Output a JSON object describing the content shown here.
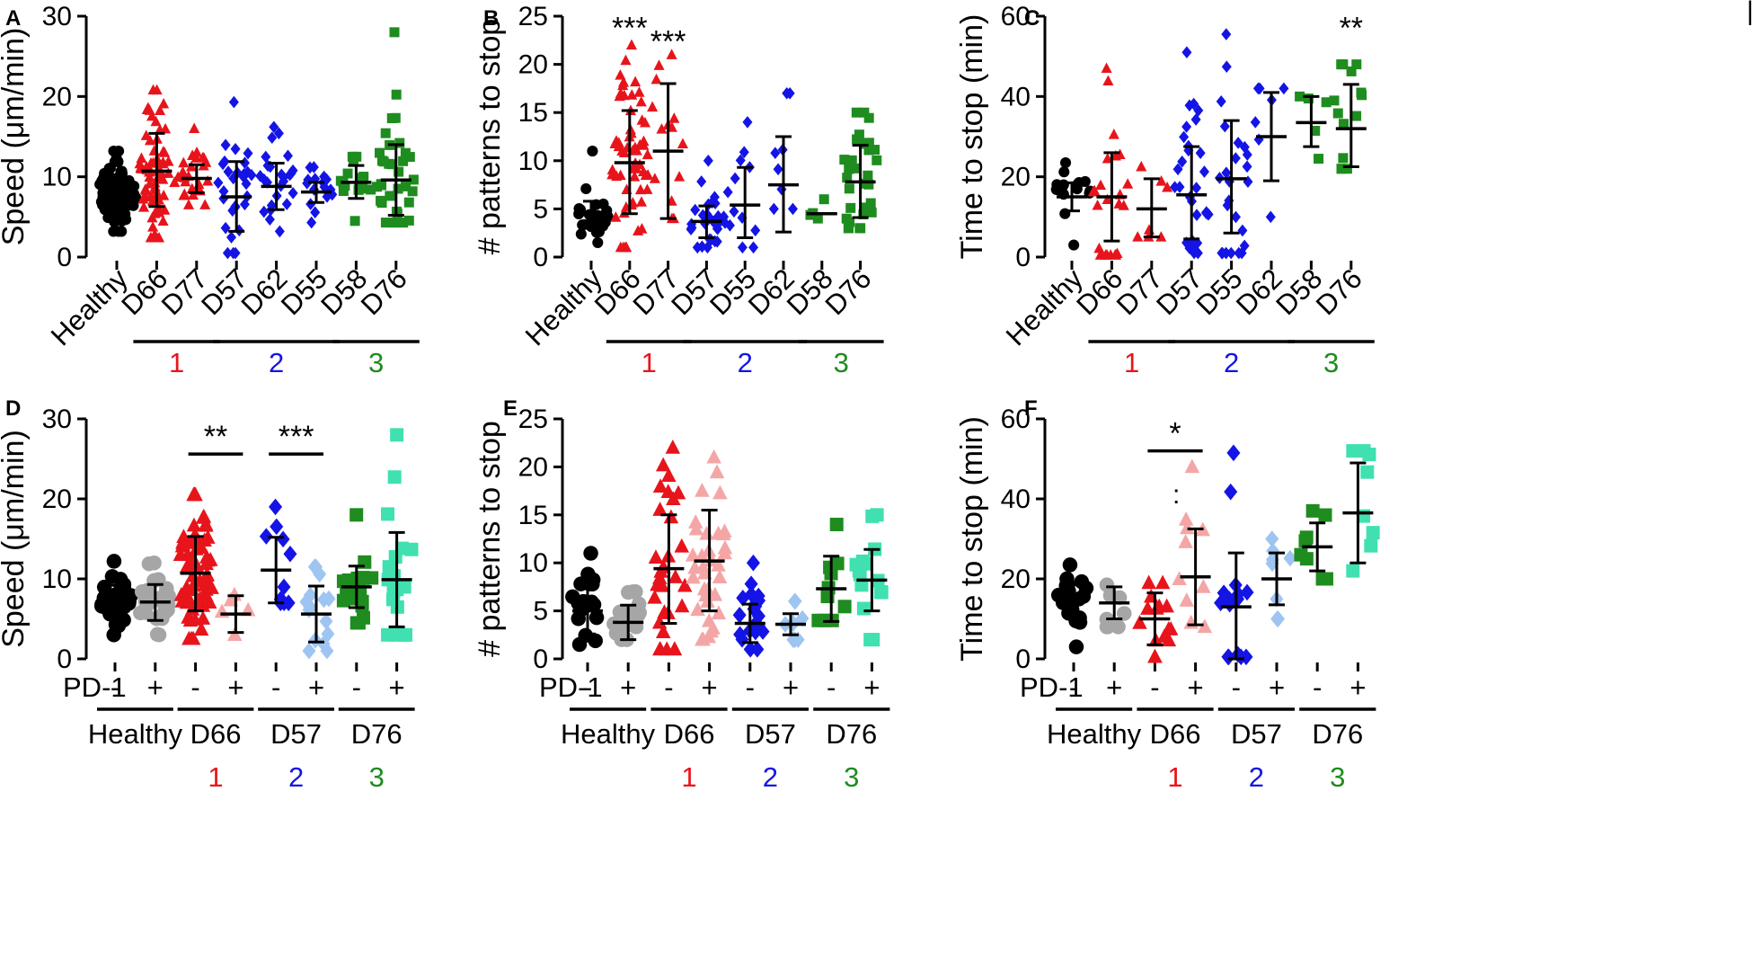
{
  "colors": {
    "black": "#000000",
    "gray": "#a6a6a6",
    "red": "#e8141b",
    "pink": "#f4a6a6",
    "blue": "#1414e6",
    "lightblue": "#9ec5f2",
    "green": "#1e8c1e",
    "mint": "#40e0b0"
  },
  "figure_marks": {
    "corner_mark_right": "|",
    "corner_mark_F": ":"
  },
  "chart_data": [
    {
      "id": "A",
      "type": "scatter",
      "panel_label": "A",
      "ylabel": "Speed (μm/min)",
      "ylim": [
        0,
        30
      ],
      "yticks": [
        0,
        10,
        20,
        30
      ],
      "categories": [
        "Healthy",
        "D66",
        "D77",
        "D57",
        "D62",
        "D55",
        "D58",
        "D76"
      ],
      "series": [
        {
          "name": "Healthy",
          "color": "black",
          "marker": "circle",
          "mean": 7.7,
          "sd_low": 5.6,
          "sd_high": 9.8,
          "n": 120,
          "min": 3.2,
          "max": 13.2
        },
        {
          "name": "D66",
          "color": "red",
          "marker": "triangle",
          "mean": 10.7,
          "sd_low": 6.3,
          "sd_high": 15.4,
          "n": 70,
          "min": 2.4,
          "max": 20.8
        },
        {
          "name": "D77",
          "color": "red",
          "marker": "triangle",
          "mean": 9.8,
          "sd_low": 8.0,
          "sd_high": 11.5,
          "n": 25,
          "min": 6.5,
          "max": 16.0
        },
        {
          "name": "D57",
          "color": "blue",
          "marker": "diamond",
          "mean": 7.5,
          "sd_low": 3.2,
          "sd_high": 11.9,
          "n": 30,
          "min": 0.5,
          "max": 19.3
        },
        {
          "name": "D62",
          "color": "blue",
          "marker": "diamond",
          "mean": 8.8,
          "sd_low": 5.9,
          "sd_high": 11.7,
          "n": 25,
          "min": 3.2,
          "max": 16.2
        },
        {
          "name": "D55",
          "color": "blue",
          "marker": "diamond",
          "mean": 8.1,
          "sd_low": 6.8,
          "sd_high": 9.3,
          "n": 18,
          "min": 4.3,
          "max": 11.2
        },
        {
          "name": "D58",
          "color": "green",
          "marker": "square",
          "mean": 9.3,
          "sd_low": 7.3,
          "sd_high": 11.4,
          "n": 15,
          "min": 4.5,
          "max": 12.5
        },
        {
          "name": "D76",
          "color": "green",
          "marker": "square",
          "mean": 9.6,
          "sd_low": 5.2,
          "sd_high": 14.0,
          "n": 35,
          "min": 4.3,
          "max": 28.0
        }
      ],
      "groups": [
        {
          "label": "1",
          "color": "red",
          "from": 1,
          "to": 2
        },
        {
          "label": "2",
          "color": "blue",
          "from": 3,
          "to": 5
        },
        {
          "label": "3",
          "color": "green",
          "from": 6,
          "to": 7
        }
      ],
      "significance": []
    },
    {
      "id": "B",
      "type": "scatter",
      "panel_label": "B",
      "ylabel": "# patterns to stop",
      "ylim": [
        0,
        25
      ],
      "yticks": [
        0,
        5,
        10,
        15,
        20,
        25
      ],
      "categories": [
        "Healthy",
        "D66",
        "D77",
        "D57",
        "D55",
        "D62",
        "D58",
        "D76"
      ],
      "series": [
        {
          "name": "Healthy",
          "color": "black",
          "marker": "circle",
          "mean": 4.5,
          "sd_low": 3.2,
          "sd_high": 5.8,
          "n": 25,
          "min": 1.5,
          "max": 11.0
        },
        {
          "name": "D66",
          "color": "red",
          "marker": "triangle",
          "mean": 9.8,
          "sd_low": 4.5,
          "sd_high": 15.2,
          "n": 60,
          "min": 1.0,
          "max": 22.0
        },
        {
          "name": "D77",
          "color": "red",
          "marker": "triangle",
          "mean": 11.0,
          "sd_low": 4.0,
          "sd_high": 18.0,
          "n": 14,
          "min": 4.0,
          "max": 21.0
        },
        {
          "name": "D57",
          "color": "blue",
          "marker": "diamond",
          "mean": 3.7,
          "sd_low": 2.0,
          "sd_high": 5.3,
          "n": 30,
          "min": 1.0,
          "max": 10.0
        },
        {
          "name": "D55",
          "color": "blue",
          "marker": "diamond",
          "mean": 5.4,
          "sd_low": 2.0,
          "sd_high": 9.3,
          "n": 12,
          "min": 1.0,
          "max": 14.0
        },
        {
          "name": "D62",
          "color": "blue",
          "marker": "diamond",
          "mean": 7.5,
          "sd_low": 2.6,
          "sd_high": 12.5,
          "n": 8,
          "min": 5.0,
          "max": 17.0
        },
        {
          "name": "D58",
          "color": "green",
          "marker": "square",
          "mean": 4.5,
          "sd_low": 4.5,
          "sd_high": 4.5,
          "n": 4,
          "min": 4.0,
          "max": 6.0
        },
        {
          "name": "D76",
          "color": "green",
          "marker": "square",
          "mean": 7.8,
          "sd_low": 4.1,
          "sd_high": 11.6,
          "n": 30,
          "min": 3.0,
          "max": 15.0
        }
      ],
      "groups": [
        {
          "label": "1",
          "color": "red",
          "from": 1,
          "to": 2
        },
        {
          "label": "2",
          "color": "blue",
          "from": 3,
          "to": 5
        },
        {
          "label": "3",
          "color": "green",
          "from": 6,
          "to": 7
        }
      ],
      "significance": [
        {
          "label": "***",
          "index": 1,
          "value": 22.7
        },
        {
          "label": "***",
          "index": 2,
          "value": 21.3
        }
      ]
    },
    {
      "id": "C",
      "type": "scatter",
      "panel_label": "C",
      "ylabel": "Time to stop (min)",
      "ylim": [
        0,
        60
      ],
      "yticks": [
        0,
        20,
        40,
        60
      ],
      "categories": [
        "Healthy",
        "D66",
        "D77",
        "D57",
        "D55",
        "D62",
        "D58",
        "D76"
      ],
      "series": [
        {
          "name": "Healthy",
          "color": "black",
          "marker": "circle",
          "mean": 15.0,
          "sd_low": 11.5,
          "sd_high": 18.5,
          "n": 16,
          "min": 3.0,
          "max": 23.5
        },
        {
          "name": "D66",
          "color": "red",
          "marker": "triangle",
          "mean": 15.0,
          "sd_low": 4.0,
          "sd_high": 26.0,
          "n": 25,
          "min": 0.5,
          "max": 47.0
        },
        {
          "name": "D77",
          "color": "red",
          "marker": "triangle",
          "mean": 12.0,
          "sd_low": 5.0,
          "sd_high": 19.5,
          "n": 7,
          "min": 5.0,
          "max": 22.5
        },
        {
          "name": "D57",
          "color": "blue",
          "marker": "diamond",
          "mean": 15.5,
          "sd_low": 4.5,
          "sd_high": 27.5,
          "n": 30,
          "min": 1.0,
          "max": 51.0
        },
        {
          "name": "D55",
          "color": "blue",
          "marker": "diamond",
          "mean": 19.5,
          "sd_low": 6.0,
          "sd_high": 34.0,
          "n": 25,
          "min": 1.0,
          "max": 55.5
        },
        {
          "name": "D62",
          "color": "blue",
          "marker": "diamond",
          "mean": 30.0,
          "sd_low": 19.0,
          "sd_high": 41.0,
          "n": 7,
          "min": 10.0,
          "max": 42.0
        },
        {
          "name": "D58",
          "color": "green",
          "marker": "square",
          "mean": 33.5,
          "sd_low": 27.5,
          "sd_high": 40.0,
          "n": 5,
          "min": 24.5,
          "max": 40.0
        },
        {
          "name": "D76",
          "color": "green",
          "marker": "square",
          "mean": 32.0,
          "sd_low": 22.5,
          "sd_high": 43.0,
          "n": 15,
          "min": 22.0,
          "max": 48.0
        }
      ],
      "groups": [
        {
          "label": "1",
          "color": "red",
          "from": 1,
          "to": 2
        },
        {
          "label": "2",
          "color": "blue",
          "from": 3,
          "to": 5
        },
        {
          "label": "3",
          "color": "green",
          "from": 6,
          "to": 7
        }
      ],
      "significance": [
        {
          "label": "**",
          "index": 7,
          "value": 54.5
        }
      ]
    },
    {
      "id": "D",
      "type": "scatter",
      "panel_label": "D",
      "ylabel": "Speed (μm/min)",
      "ylim": [
        0,
        30
      ],
      "yticks": [
        0,
        10,
        20,
        30
      ],
      "pd1_label": "PD-1",
      "pd1_signs": [
        "-",
        "+"
      ],
      "categories": [
        "Healthy -",
        "Healthy +",
        "D66 -",
        "D66 +",
        "D57 -",
        "D57 +",
        "D76 -",
        "D76 +"
      ],
      "series": [
        {
          "name": "Healthy -",
          "color": "black",
          "marker": "circle",
          "mean": 7.5,
          "sd_low": 5.8,
          "sd_high": 9.2,
          "n": 30,
          "min": 3.0,
          "max": 12.2
        },
        {
          "name": "Healthy +",
          "color": "gray",
          "marker": "circle",
          "mean": 7.1,
          "sd_low": 4.8,
          "sd_high": 9.3,
          "n": 30,
          "min": 3.0,
          "max": 12.0
        },
        {
          "name": "D66 -",
          "color": "red",
          "marker": "triangle",
          "mean": 10.7,
          "sd_low": 6.0,
          "sd_high": 15.3,
          "n": 70,
          "min": 2.5,
          "max": 20.5
        },
        {
          "name": "D66 +",
          "color": "pink",
          "marker": "triangle",
          "mean": 5.6,
          "sd_low": 3.3,
          "sd_high": 7.9,
          "n": 5,
          "min": 3.0,
          "max": 8.0
        },
        {
          "name": "D57 -",
          "color": "blue",
          "marker": "diamond",
          "mean": 11.1,
          "sd_low": 7.0,
          "sd_high": 15.2,
          "n": 10,
          "min": 7.0,
          "max": 19.0
        },
        {
          "name": "D57 +",
          "color": "lightblue",
          "marker": "diamond",
          "mean": 5.6,
          "sd_low": 2.1,
          "sd_high": 9.1,
          "n": 15,
          "min": 1.0,
          "max": 11.5
        },
        {
          "name": "D76 -",
          "color": "green",
          "marker": "square",
          "mean": 9.0,
          "sd_low": 6.4,
          "sd_high": 11.6,
          "n": 20,
          "min": 4.5,
          "max": 18.0
        },
        {
          "name": "D76 +",
          "color": "mint",
          "marker": "square",
          "mean": 9.9,
          "sd_low": 4.0,
          "sd_high": 15.8,
          "n": 18,
          "min": 3.0,
          "max": 28.0
        }
      ],
      "groups": [
        {
          "label": "Healthy",
          "num": "",
          "color": "black",
          "from": 0,
          "to": 1
        },
        {
          "label": "D66",
          "num": "1",
          "color": "red",
          "from": 2,
          "to": 3
        },
        {
          "label": "D57",
          "num": "2",
          "color": "blue",
          "from": 4,
          "to": 5
        },
        {
          "label": "D76",
          "num": "3",
          "color": "green",
          "from": 6,
          "to": 7
        }
      ],
      "significance": [
        {
          "label": "**",
          "from": 2,
          "to": 3,
          "value": 25.6
        },
        {
          "label": "***",
          "from": 4,
          "to": 5,
          "value": 25.6
        }
      ]
    },
    {
      "id": "E",
      "type": "scatter",
      "panel_label": "E",
      "ylabel": "# patterns to stop",
      "ylim": [
        0,
        25
      ],
      "yticks": [
        0,
        5,
        10,
        15,
        20,
        25
      ],
      "pd1_label": "PD-1",
      "pd1_signs": [
        "-",
        "+"
      ],
      "categories": [
        "Healthy -",
        "Healthy +",
        "D66 -",
        "D66 +",
        "D57 -",
        "D57 +",
        "D76 -",
        "D76 +"
      ],
      "series": [
        {
          "name": "Healthy -",
          "color": "black",
          "marker": "circle",
          "mean": 5.0,
          "sd_low": 2.6,
          "sd_high": 7.4,
          "n": 18,
          "min": 1.5,
          "max": 11.0
        },
        {
          "name": "Healthy +",
          "color": "gray",
          "marker": "circle",
          "mean": 3.8,
          "sd_low": 2.0,
          "sd_high": 5.6,
          "n": 20,
          "min": 2.0,
          "max": 7.0
        },
        {
          "name": "D66 -",
          "color": "red",
          "marker": "triangle",
          "mean": 9.4,
          "sd_low": 3.7,
          "sd_high": 15.0,
          "n": 30,
          "min": 1.0,
          "max": 22.0
        },
        {
          "name": "D66 +",
          "color": "pink",
          "marker": "triangle",
          "mean": 10.2,
          "sd_low": 5.0,
          "sd_high": 15.5,
          "n": 35,
          "min": 2.0,
          "max": 21.0
        },
        {
          "name": "D57 -",
          "color": "blue",
          "marker": "diamond",
          "mean": 3.7,
          "sd_low": 1.7,
          "sd_high": 5.7,
          "n": 20,
          "min": 1.0,
          "max": 10.0
        },
        {
          "name": "D57 +",
          "color": "lightblue",
          "marker": "diamond",
          "mean": 3.6,
          "sd_low": 2.5,
          "sd_high": 4.7,
          "n": 8,
          "min": 2.0,
          "max": 6.0
        },
        {
          "name": "D76 -",
          "color": "green",
          "marker": "square",
          "mean": 7.3,
          "sd_low": 3.9,
          "sd_high": 10.7,
          "n": 10,
          "min": 4.0,
          "max": 14.0
        },
        {
          "name": "D76 +",
          "color": "mint",
          "marker": "square",
          "mean": 8.2,
          "sd_low": 5.0,
          "sd_high": 11.4,
          "n": 15,
          "min": 2.0,
          "max": 15.0
        }
      ],
      "groups": [
        {
          "label": "Healthy",
          "num": "",
          "color": "black",
          "from": 0,
          "to": 1
        },
        {
          "label": "D66",
          "num": "1",
          "color": "red",
          "from": 2,
          "to": 3
        },
        {
          "label": "D57",
          "num": "2",
          "color": "blue",
          "from": 4,
          "to": 5
        },
        {
          "label": "D76",
          "num": "3",
          "color": "green",
          "from": 6,
          "to": 7
        }
      ],
      "significance": []
    },
    {
      "id": "F",
      "type": "scatter",
      "panel_label": "F",
      "ylabel": "Time to stop (min)",
      "ylim": [
        0,
        60
      ],
      "yticks": [
        0,
        20,
        40,
        60
      ],
      "pd1_label": "PD-1",
      "pd1_signs": [
        "-",
        "+"
      ],
      "categories": [
        "Healthy -",
        "Healthy +",
        "D66 -",
        "D66 +",
        "D57 -",
        "D57 +",
        "D76 -",
        "D76 +"
      ],
      "series": [
        {
          "name": "Healthy -",
          "color": "black",
          "marker": "circle",
          "mean": 15.0,
          "sd_low": 11.5,
          "sd_high": 18.5,
          "n": 20,
          "min": 3.0,
          "max": 23.5
        },
        {
          "name": "Healthy +",
          "color": "gray",
          "marker": "circle",
          "mean": 14.0,
          "sd_low": 10.0,
          "sd_high": 18.0,
          "n": 8,
          "min": 8.0,
          "max": 18.5
        },
        {
          "name": "D66 -",
          "color": "red",
          "marker": "triangle",
          "mean": 10.0,
          "sd_low": 3.5,
          "sd_high": 16.5,
          "n": 15,
          "min": 0.5,
          "max": 19.0
        },
        {
          "name": "D66 +",
          "color": "pink",
          "marker": "triangle",
          "mean": 20.5,
          "sd_low": 8.5,
          "sd_high": 32.5,
          "n": 10,
          "min": 8.0,
          "max": 48.0
        },
        {
          "name": "D57 -",
          "color": "blue",
          "marker": "diamond",
          "mean": 13.0,
          "sd_low": 0.0,
          "sd_high": 26.5,
          "n": 15,
          "min": 0.5,
          "max": 51.5
        },
        {
          "name": "D57 +",
          "color": "lightblue",
          "marker": "diamond",
          "mean": 20.0,
          "sd_low": 13.5,
          "sd_high": 26.5,
          "n": 8,
          "min": 10.0,
          "max": 30.0
        },
        {
          "name": "D76 -",
          "color": "green",
          "marker": "square",
          "mean": 28.0,
          "sd_low": 22.0,
          "sd_high": 34.0,
          "n": 8,
          "min": 20.0,
          "max": 37.0
        },
        {
          "name": "D76 +",
          "color": "mint",
          "marker": "square",
          "mean": 36.5,
          "sd_low": 24.0,
          "sd_high": 49.0,
          "n": 8,
          "min": 22.0,
          "max": 52.0
        }
      ],
      "groups": [
        {
          "label": "Healthy",
          "num": "",
          "color": "black",
          "from": 0,
          "to": 1
        },
        {
          "label": "D66",
          "num": "1",
          "color": "red",
          "from": 2,
          "to": 3
        },
        {
          "label": "D57",
          "num": "2",
          "color": "blue",
          "from": 4,
          "to": 5
        },
        {
          "label": "D76",
          "num": "3",
          "color": "green",
          "from": 6,
          "to": 7
        }
      ],
      "significance": [
        {
          "label": "*",
          "from": 2,
          "to": 3,
          "value": 52.0
        }
      ]
    }
  ]
}
